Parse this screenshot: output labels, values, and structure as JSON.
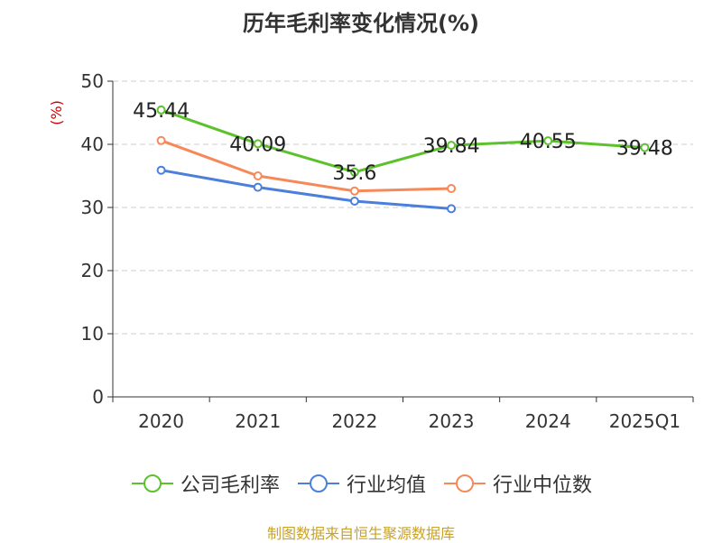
{
  "chart_data": {
    "type": "line",
    "title": "历年毛利率变化情况(%)",
    "ylabel": "(%)",
    "xlabel": "",
    "categories": [
      "2020",
      "2021",
      "2022",
      "2023",
      "2024",
      "2025Q1"
    ],
    "ylim": [
      0,
      50
    ],
    "yticks": [
      0,
      10,
      20,
      30,
      40,
      50
    ],
    "grid": true,
    "legend_position": "bottom",
    "series": [
      {
        "name": "公司毛利率",
        "color": "#5cc22c",
        "values": [
          45.44,
          40.09,
          35.6,
          39.84,
          40.55,
          39.48
        ],
        "labels": [
          "45.44",
          "40.09",
          "35.6",
          "39.84",
          "40.55",
          "39.48"
        ]
      },
      {
        "name": "行业均值",
        "color": "#4b7fdc",
        "values": [
          35.9,
          33.2,
          31.0,
          29.8,
          null,
          null
        ]
      },
      {
        "name": "行业中位数",
        "color": "#f5895a",
        "values": [
          40.6,
          35.0,
          32.6,
          33.0,
          null,
          null
        ]
      }
    ]
  },
  "footer": "制图数据来自恒生聚源数据库"
}
